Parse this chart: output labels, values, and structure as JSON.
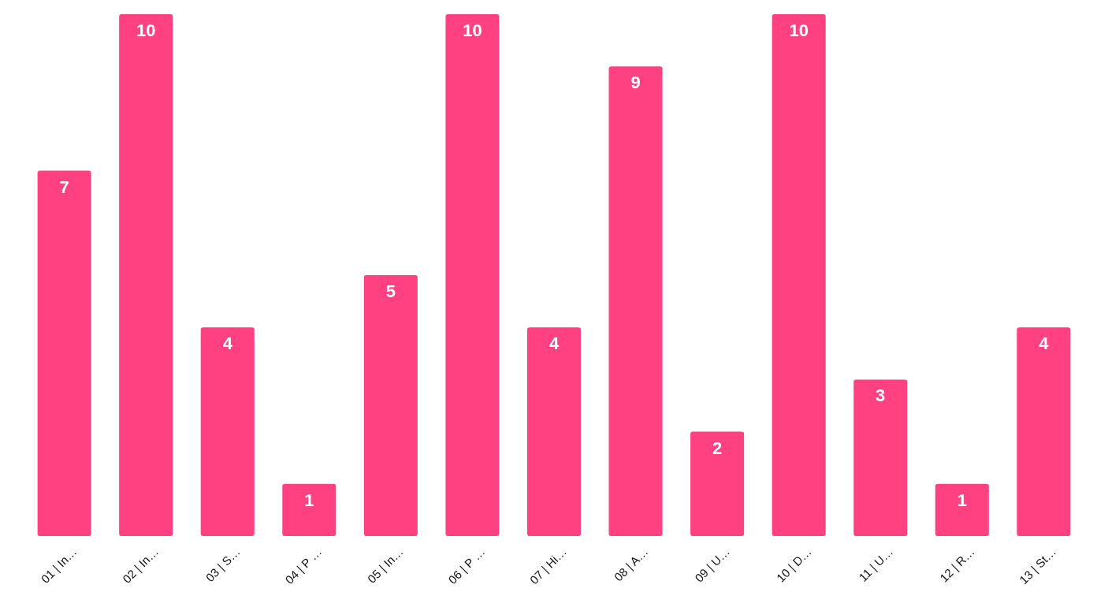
{
  "chart_data": {
    "type": "bar",
    "categories": [
      "01 | In…",
      "02 | In…",
      "03 | S…",
      "04 | P …",
      "05 | In…",
      "06 | P …",
      "07 | Hi…",
      "08 | A…",
      "09 | U…",
      "10 | D…",
      "11 | U…",
      "12 | R…",
      "13 | St…"
    ],
    "values": [
      7,
      10,
      4,
      1,
      5,
      10,
      4,
      9,
      2,
      10,
      3,
      1,
      4
    ],
    "color": "#ff4081",
    "ylim": [
      0,
      10
    ],
    "data_labels": true,
    "tick_labels": "x"
  }
}
